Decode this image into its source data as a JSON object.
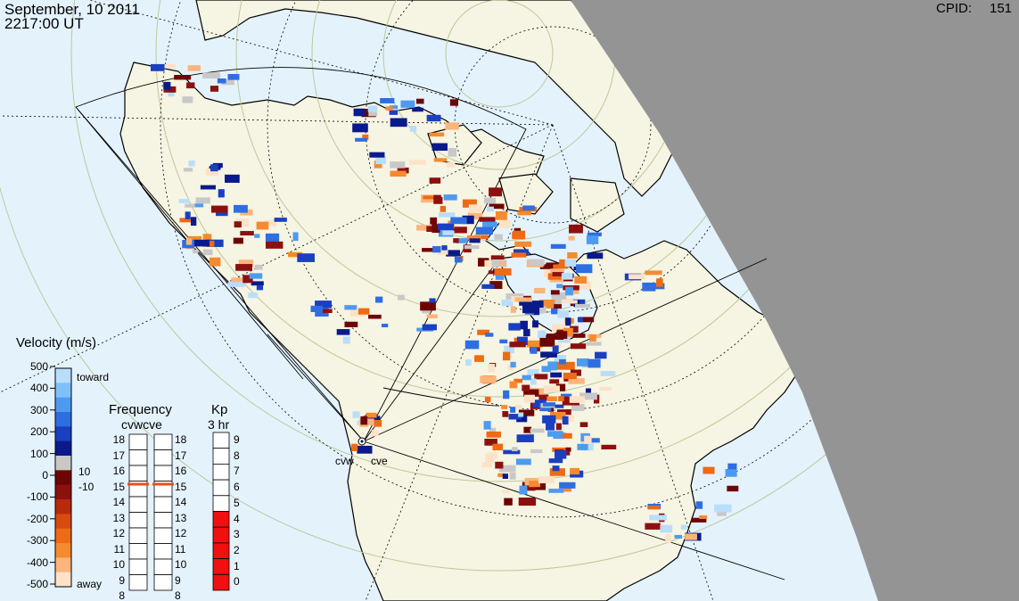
{
  "header": {
    "date_line": "September, 10 2011",
    "time_line": "2217:00 UT",
    "cpid_label": "CPID:",
    "cpid_value": "151"
  },
  "radars": {
    "west_label": "cvw",
    "east_label": "cve"
  },
  "velocity_legend": {
    "title": "Velocity (m/s)",
    "toward_label": "toward",
    "away_label": "away",
    "ticks": [
      "500",
      "400",
      "300",
      "200",
      "100",
      "0",
      "-100",
      "-200",
      "-300",
      "-400",
      "-500"
    ],
    "threshold_pos": "10",
    "threshold_neg": "-10",
    "colors": [
      "#fde2c8",
      "#fbb47a",
      "#f58a2e",
      "#ee6a14",
      "#d94a0e",
      "#b72a0a",
      "#8c1010",
      "#6e0505",
      "#c8c8c8",
      "#0a1a8a",
      "#1a3fc0",
      "#2e6ee0",
      "#4d9bf0",
      "#7fc0f8",
      "#b8defa"
    ]
  },
  "frequency_legend": {
    "title": "Frequency",
    "subtitle": "cvwcve",
    "left_ticks": [
      "18",
      "17",
      "16",
      "15",
      "14",
      "13",
      "12",
      "11",
      "10",
      "9",
      "8"
    ],
    "right_ticks": [
      "18",
      "17",
      "16",
      "15",
      "14",
      "13",
      "12",
      "11",
      "10",
      "9",
      "8"
    ],
    "cvw_freq_mhz": 14.8,
    "cve_freq_mhz": 14.8,
    "marker_color": "#e8501a"
  },
  "kp_legend": {
    "title": "Kp",
    "subtitle": "3 hr",
    "ticks": [
      "9",
      "8",
      "7",
      "6",
      "5",
      "4",
      "3",
      "2",
      "1",
      "0"
    ],
    "kp_value": 5,
    "bar_color": "#f01010"
  },
  "map_colors": {
    "ocean": "#e4f2fc",
    "land": "#f6f4e2",
    "night": "#949494",
    "grid": "#bcc99a"
  },
  "map_elements": {
    "date_line_tag": "map-content"
  }
}
